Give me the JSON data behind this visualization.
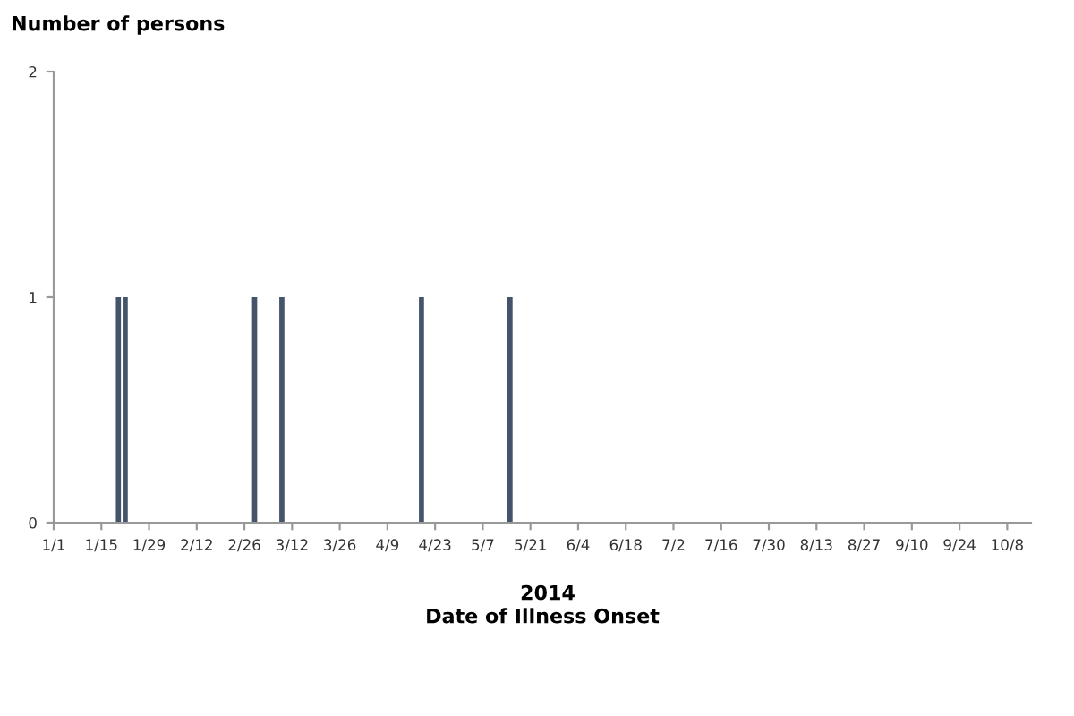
{
  "chart_data": {
    "type": "bar",
    "ylabel": "Number of persons",
    "xlabel": "Date of Illness Onset",
    "annotations": [
      "2014"
    ],
    "x": [
      "2014-01-20",
      "2014-01-22",
      "2014-03-01",
      "2014-03-09",
      "2014-04-19",
      "2014-05-15"
    ],
    "values": [
      1,
      1,
      1,
      1,
      1,
      1
    ],
    "color": "#44546a",
    "xlim": [
      "2014-01-01",
      "2014-10-15"
    ],
    "xticks": [
      {
        "value": "2014-01-01",
        "label": "1/1"
      },
      {
        "value": "2014-01-15",
        "label": "1/15"
      },
      {
        "value": "2014-01-29",
        "label": "1/29"
      },
      {
        "value": "2014-02-12",
        "label": "2/12"
      },
      {
        "value": "2014-02-26",
        "label": "2/26"
      },
      {
        "value": "2014-03-12",
        "label": "3/12"
      },
      {
        "value": "2014-03-26",
        "label": "3/26"
      },
      {
        "value": "2014-04-09",
        "label": "4/9"
      },
      {
        "value": "2014-04-23",
        "label": "4/23"
      },
      {
        "value": "2014-05-07",
        "label": "5/7"
      },
      {
        "value": "2014-05-21",
        "label": "5/21"
      },
      {
        "value": "2014-06-04",
        "label": "6/4"
      },
      {
        "value": "2014-06-18",
        "label": "6/18"
      },
      {
        "value": "2014-07-02",
        "label": "7/2"
      },
      {
        "value": "2014-07-16",
        "label": "7/16"
      },
      {
        "value": "2014-07-30",
        "label": "7/30"
      },
      {
        "value": "2014-08-13",
        "label": "8/13"
      },
      {
        "value": "2014-08-27",
        "label": "8/27"
      },
      {
        "value": "2014-09-10",
        "label": "9/10"
      },
      {
        "value": "2014-09-24",
        "label": "9/24"
      },
      {
        "value": "2014-10-08",
        "label": "10/8"
      }
    ],
    "ylim": [
      0,
      2
    ],
    "yticks": [
      0,
      1,
      2
    ],
    "grid": false
  }
}
